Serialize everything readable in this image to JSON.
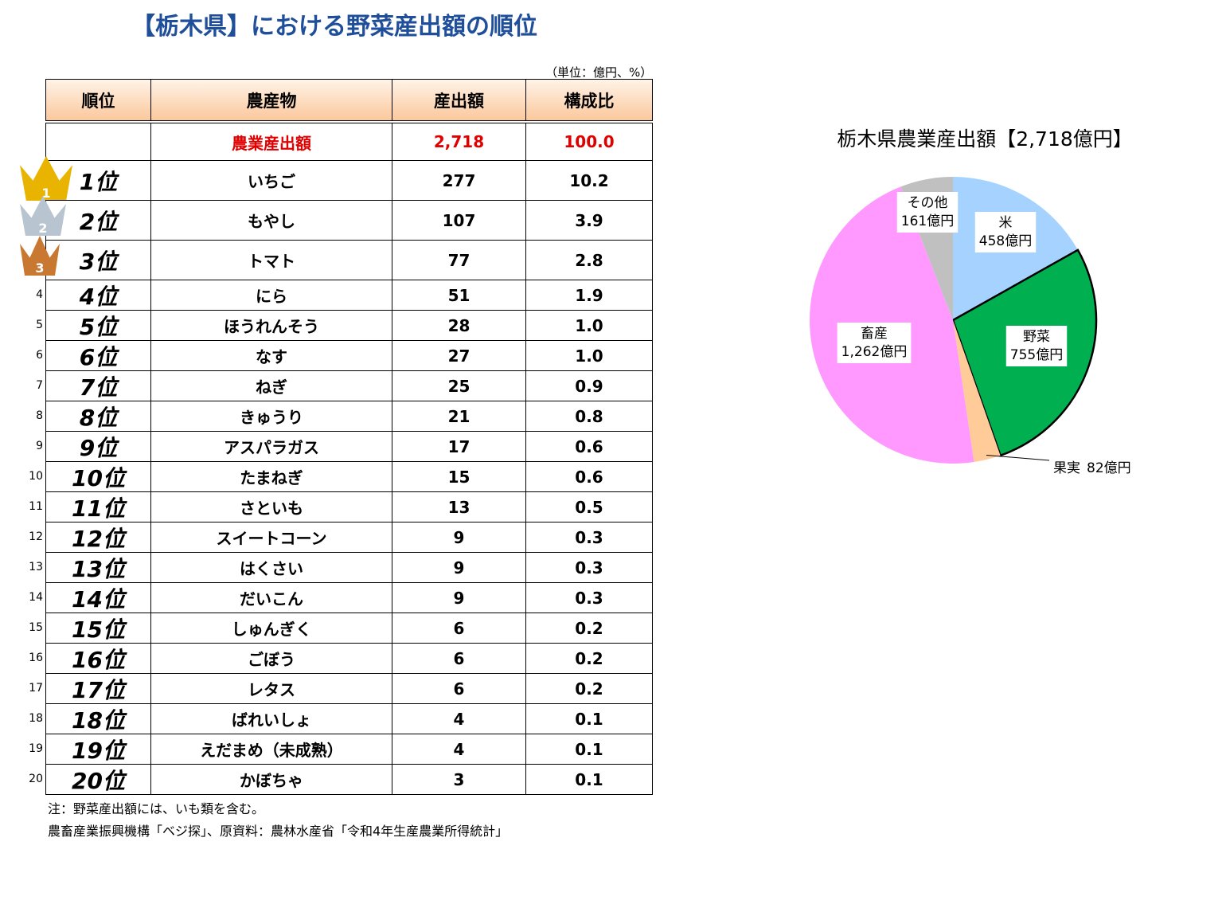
{
  "header": {
    "title": "【栃木県】における野菜産出額の順位",
    "unit": "（単位：億円、%）"
  },
  "table": {
    "columns": [
      "順位",
      "農産物",
      "産出額",
      "構成比"
    ],
    "total": {
      "crop": "農業産出額",
      "amount": "2,718",
      "share": "100.0"
    },
    "rows": [
      {
        "side": "1",
        "rank": "1位",
        "crop": "いちご",
        "amount": "277",
        "share": "10.2"
      },
      {
        "side": "2",
        "rank": "2位",
        "crop": "もやし",
        "amount": "107",
        "share": "3.9"
      },
      {
        "side": "3",
        "rank": "3位",
        "crop": "トマト",
        "amount": "77",
        "share": "2.8"
      },
      {
        "side": "4",
        "rank": "4位",
        "crop": "にら",
        "amount": "51",
        "share": "1.9"
      },
      {
        "side": "5",
        "rank": "5位",
        "crop": "ほうれんそう",
        "amount": "28",
        "share": "1.0"
      },
      {
        "side": "6",
        "rank": "6位",
        "crop": "なす",
        "amount": "27",
        "share": "1.0"
      },
      {
        "side": "7",
        "rank": "7位",
        "crop": "ねぎ",
        "amount": "25",
        "share": "0.9"
      },
      {
        "side": "8",
        "rank": "8位",
        "crop": "きゅうり",
        "amount": "21",
        "share": "0.8"
      },
      {
        "side": "9",
        "rank": "9位",
        "crop": "アスパラガス",
        "amount": "17",
        "share": "0.6"
      },
      {
        "side": "10",
        "rank": "10位",
        "crop": "たまねぎ",
        "amount": "15",
        "share": "0.6"
      },
      {
        "side": "11",
        "rank": "11位",
        "crop": "さといも",
        "amount": "13",
        "share": "0.5"
      },
      {
        "side": "12",
        "rank": "12位",
        "crop": "スイートコーン",
        "amount": "9",
        "share": "0.3"
      },
      {
        "side": "13",
        "rank": "13位",
        "crop": "はくさい",
        "amount": "9",
        "share": "0.3"
      },
      {
        "side": "14",
        "rank": "14位",
        "crop": "だいこん",
        "amount": "9",
        "share": "0.3"
      },
      {
        "side": "15",
        "rank": "15位",
        "crop": "しゅんぎく",
        "amount": "6",
        "share": "0.2"
      },
      {
        "side": "16",
        "rank": "16位",
        "crop": "ごぼう",
        "amount": "6",
        "share": "0.2"
      },
      {
        "side": "17",
        "rank": "17位",
        "crop": "レタス",
        "amount": "6",
        "share": "0.2"
      },
      {
        "side": "18",
        "rank": "18位",
        "crop": "ばれいしょ",
        "amount": "4",
        "share": "0.1"
      },
      {
        "side": "19",
        "rank": "19位",
        "crop": "えだまめ（未成熟）",
        "amount": "4",
        "share": "0.1"
      },
      {
        "side": "20",
        "rank": "20位",
        "crop": "かぼちゃ",
        "amount": "3",
        "share": "0.1"
      }
    ]
  },
  "notes": [
    "注：野菜産出額には、いも類を含む。",
    "農畜産業振興機構「ベジ探」、原資料：農林水産省「令和4年生産農業所得統計」"
  ],
  "chart_data": {
    "type": "pie",
    "title": "栃木県農業産出額【2,718億円】",
    "categories": [
      "米",
      "野菜",
      "果実",
      "畜産",
      "その他"
    ],
    "values": [
      458,
      755,
      82,
      1262,
      161
    ],
    "value_labels": [
      "458億円",
      "755億円",
      "82億円",
      "1,262億円",
      "161億円"
    ],
    "colors": [
      "#a6d2ff",
      "#00b050",
      "#ffcc99",
      "#ff99ff",
      "#c0c0c0"
    ],
    "highlight": 1
  }
}
